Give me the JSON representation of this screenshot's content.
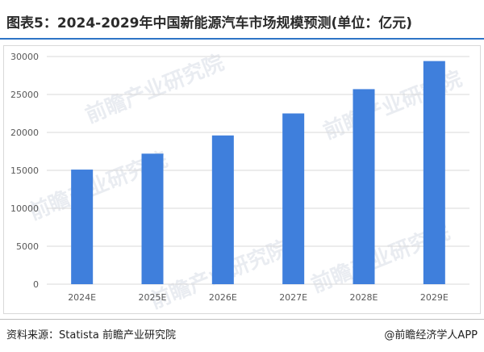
{
  "title": "图表5：2024-2029年中国新能源汽车市场规模预测(单位：亿元)",
  "source": "资料来源：Statista 前瞻产业研究院",
  "credit": "@前瞻经济学人APP",
  "watermark": "前瞻产业研究院",
  "colors": {
    "bar": "#3f7fdc",
    "title_rule": "#2e74c6",
    "gridline": "#d9d9d9",
    "axis_text": "#595959"
  },
  "chart_data": {
    "type": "bar",
    "categories": [
      "2024E",
      "2025E",
      "2026E",
      "2027E",
      "2028E",
      "2029E"
    ],
    "values": [
      15100,
      17200,
      19600,
      22500,
      25700,
      29400
    ],
    "ylim": [
      0,
      30000
    ],
    "yticks": [
      "0",
      "5000",
      "10000",
      "15000",
      "20000",
      "25000",
      "30000"
    ],
    "grid": true,
    "legend": "none"
  }
}
